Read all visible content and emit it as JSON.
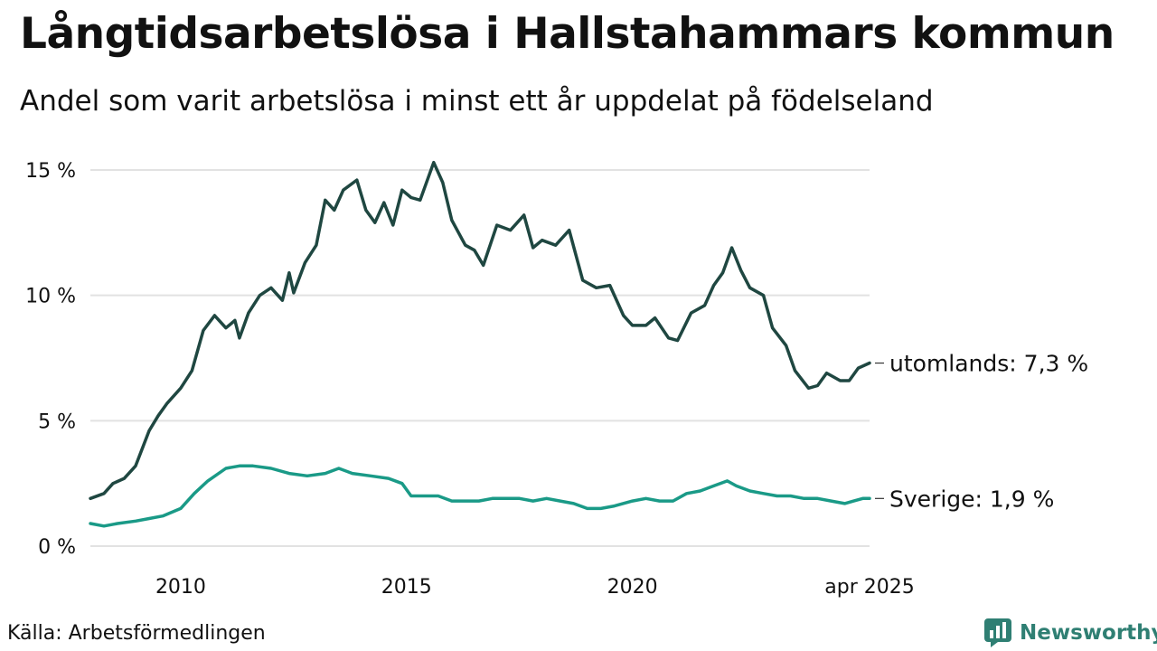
{
  "title": "Långtidsarbetslösa i Hallstahammars kommun",
  "subtitle": "Andel som varit arbetslösa i minst ett år uppdelat på födelseland",
  "source": "Källa: Arbetsförmedlingen",
  "brand": {
    "name": "Newsworthy",
    "icon": "newsworthy-logo-icon"
  },
  "colors": {
    "utomlands": "#1f4741",
    "sverige": "#1a9a87",
    "grid": "#e2e2e2",
    "text": "#111111"
  },
  "chart_data": {
    "type": "line",
    "title": "Långtidsarbetslösa i Hallstahammars kommun",
    "xlabel": "",
    "ylabel": "",
    "ylim": [
      0,
      15
    ],
    "xlim": [
      2008.0,
      2025.25
    ],
    "grid": true,
    "y_ticks": [
      0,
      5,
      10,
      15
    ],
    "y_tick_labels": [
      "0 %",
      "5 %",
      "10 %",
      "15 %"
    ],
    "x_ticks": [
      2010,
      2015,
      2020,
      2025.25
    ],
    "x_tick_labels": [
      "2010",
      "2015",
      "2020",
      "apr 2025"
    ],
    "end_labels": [
      "utomlands: 7,3 %",
      "Sverige: 1,9 %"
    ],
    "series": [
      {
        "key": "utomlands",
        "points": [
          [
            2008.0,
            1.9
          ],
          [
            2008.3,
            2.1
          ],
          [
            2008.5,
            2.5
          ],
          [
            2008.75,
            2.7
          ],
          [
            2009.0,
            3.2
          ],
          [
            2009.3,
            4.6
          ],
          [
            2009.5,
            5.2
          ],
          [
            2009.7,
            5.7
          ],
          [
            2010.0,
            6.3
          ],
          [
            2010.25,
            7.0
          ],
          [
            2010.5,
            8.6
          ],
          [
            2010.75,
            9.2
          ],
          [
            2011.0,
            8.7
          ],
          [
            2011.2,
            9.0
          ],
          [
            2011.3,
            8.3
          ],
          [
            2011.5,
            9.3
          ],
          [
            2011.75,
            10.0
          ],
          [
            2012.0,
            10.3
          ],
          [
            2012.25,
            9.8
          ],
          [
            2012.4,
            10.9
          ],
          [
            2012.5,
            10.1
          ],
          [
            2012.75,
            11.3
          ],
          [
            2013.0,
            12.0
          ],
          [
            2013.2,
            13.8
          ],
          [
            2013.4,
            13.4
          ],
          [
            2013.6,
            14.2
          ],
          [
            2013.9,
            14.6
          ],
          [
            2014.1,
            13.4
          ],
          [
            2014.3,
            12.9
          ],
          [
            2014.5,
            13.7
          ],
          [
            2014.7,
            12.8
          ],
          [
            2014.9,
            14.2
          ],
          [
            2015.1,
            13.9
          ],
          [
            2015.3,
            13.8
          ],
          [
            2015.6,
            15.3
          ],
          [
            2015.8,
            14.5
          ],
          [
            2016.0,
            13.0
          ],
          [
            2016.3,
            12.0
          ],
          [
            2016.5,
            11.8
          ],
          [
            2016.7,
            11.2
          ],
          [
            2017.0,
            12.8
          ],
          [
            2017.3,
            12.6
          ],
          [
            2017.6,
            13.2
          ],
          [
            2017.8,
            11.9
          ],
          [
            2018.0,
            12.2
          ],
          [
            2018.3,
            12.0
          ],
          [
            2018.6,
            12.6
          ],
          [
            2018.9,
            10.6
          ],
          [
            2019.2,
            10.3
          ],
          [
            2019.5,
            10.4
          ],
          [
            2019.8,
            9.2
          ],
          [
            2020.0,
            8.8
          ],
          [
            2020.3,
            8.8
          ],
          [
            2020.5,
            9.1
          ],
          [
            2020.8,
            8.3
          ],
          [
            2021.0,
            8.2
          ],
          [
            2021.3,
            9.3
          ],
          [
            2021.6,
            9.6
          ],
          [
            2021.8,
            10.4
          ],
          [
            2022.0,
            10.9
          ],
          [
            2022.2,
            11.9
          ],
          [
            2022.4,
            11.0
          ],
          [
            2022.6,
            10.3
          ],
          [
            2022.9,
            10.0
          ],
          [
            2023.1,
            8.7
          ],
          [
            2023.4,
            8.0
          ],
          [
            2023.6,
            7.0
          ],
          [
            2023.9,
            6.3
          ],
          [
            2024.1,
            6.4
          ],
          [
            2024.3,
            6.9
          ],
          [
            2024.6,
            6.6
          ],
          [
            2024.8,
            6.6
          ],
          [
            2025.0,
            7.1
          ],
          [
            2025.25,
            7.3
          ]
        ]
      },
      {
        "key": "sverige",
        "points": [
          [
            2008.0,
            0.9
          ],
          [
            2008.3,
            0.8
          ],
          [
            2008.6,
            0.9
          ],
          [
            2009.0,
            1.0
          ],
          [
            2009.3,
            1.1
          ],
          [
            2009.6,
            1.2
          ],
          [
            2010.0,
            1.5
          ],
          [
            2010.3,
            2.1
          ],
          [
            2010.6,
            2.6
          ],
          [
            2011.0,
            3.1
          ],
          [
            2011.3,
            3.2
          ],
          [
            2011.6,
            3.2
          ],
          [
            2012.0,
            3.1
          ],
          [
            2012.4,
            2.9
          ],
          [
            2012.8,
            2.8
          ],
          [
            2013.2,
            2.9
          ],
          [
            2013.5,
            3.1
          ],
          [
            2013.8,
            2.9
          ],
          [
            2014.2,
            2.8
          ],
          [
            2014.6,
            2.7
          ],
          [
            2014.9,
            2.5
          ],
          [
            2015.1,
            2.0
          ],
          [
            2015.4,
            2.0
          ],
          [
            2015.7,
            2.0
          ],
          [
            2016.0,
            1.8
          ],
          [
            2016.3,
            1.8
          ],
          [
            2016.6,
            1.8
          ],
          [
            2016.9,
            1.9
          ],
          [
            2017.2,
            1.9
          ],
          [
            2017.5,
            1.9
          ],
          [
            2017.8,
            1.8
          ],
          [
            2018.1,
            1.9
          ],
          [
            2018.4,
            1.8
          ],
          [
            2018.7,
            1.7
          ],
          [
            2019.0,
            1.5
          ],
          [
            2019.3,
            1.5
          ],
          [
            2019.6,
            1.6
          ],
          [
            2020.0,
            1.8
          ],
          [
            2020.3,
            1.9
          ],
          [
            2020.6,
            1.8
          ],
          [
            2020.9,
            1.8
          ],
          [
            2021.2,
            2.1
          ],
          [
            2021.5,
            2.2
          ],
          [
            2021.8,
            2.4
          ],
          [
            2022.1,
            2.6
          ],
          [
            2022.3,
            2.4
          ],
          [
            2022.6,
            2.2
          ],
          [
            2022.9,
            2.1
          ],
          [
            2023.2,
            2.0
          ],
          [
            2023.5,
            2.0
          ],
          [
            2023.8,
            1.9
          ],
          [
            2024.1,
            1.9
          ],
          [
            2024.4,
            1.8
          ],
          [
            2024.7,
            1.7
          ],
          [
            2024.9,
            1.8
          ],
          [
            2025.1,
            1.9
          ],
          [
            2025.25,
            1.9
          ]
        ]
      }
    ]
  }
}
